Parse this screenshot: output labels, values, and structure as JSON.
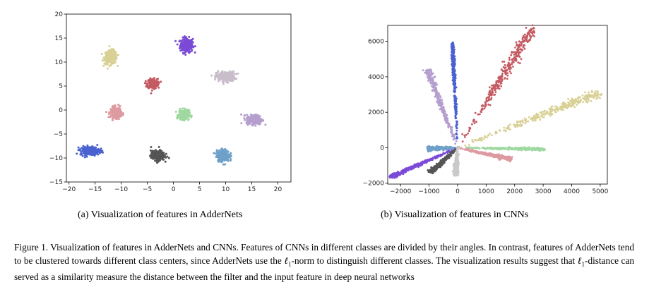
{
  "chart_data": [
    {
      "type": "scatter",
      "xlim": [
        -20.5,
        22.5
      ],
      "ylim": [
        -15,
        20
      ],
      "xticks": [
        -20,
        -15,
        -10,
        -5,
        0,
        5,
        10,
        15,
        20
      ],
      "yticks": [
        -15,
        -10,
        -5,
        0,
        5,
        10,
        15,
        20
      ],
      "grid": false,
      "clusters": [
        {
          "center": [
            2.5,
            13.5
          ],
          "spread": [
            1.2,
            1.5
          ],
          "color": "#7b4bd6"
        },
        {
          "center": [
            -12.0,
            11.0
          ],
          "spread": [
            1.2,
            1.4
          ],
          "color": "#d8d094"
        },
        {
          "center": [
            -4.0,
            5.5
          ],
          "spread": [
            1.0,
            1.0
          ],
          "color": "#c45a62"
        },
        {
          "center": [
            10.0,
            7.0
          ],
          "spread": [
            1.8,
            1.0
          ],
          "color": "#c9bdcb"
        },
        {
          "center": [
            -11.0,
            -0.5
          ],
          "spread": [
            1.0,
            1.1
          ],
          "color": "#dd9aa0"
        },
        {
          "center": [
            2.0,
            -1.0
          ],
          "spread": [
            1.0,
            1.0
          ],
          "color": "#9fd8a0"
        },
        {
          "center": [
            15.5,
            -2.0
          ],
          "spread": [
            1.5,
            1.0
          ],
          "color": "#b59fce"
        },
        {
          "center": [
            -16.0,
            -8.5
          ],
          "spread": [
            1.8,
            0.9
          ],
          "color": "#4a62d0"
        },
        {
          "center": [
            -3.0,
            -9.5
          ],
          "spread": [
            1.3,
            1.0
          ],
          "color": "#555555"
        },
        {
          "center": [
            9.5,
            -9.5
          ],
          "spread": [
            1.2,
            1.2
          ],
          "color": "#6ea0c9"
        }
      ]
    },
    {
      "type": "scatter",
      "xlim": [
        -2450,
        5250
      ],
      "ylim": [
        -2050,
        6900
      ],
      "xticks": [
        -2000,
        -1000,
        0,
        1000,
        2000,
        3000,
        4000,
        5000
      ],
      "yticks": [
        -2000,
        0,
        2000,
        4000,
        6000
      ],
      "grid": false,
      "rays": [
        {
          "end": [
            2650,
            6750
          ],
          "width": 230,
          "color": "#c45a62"
        },
        {
          "end": [
            4950,
            3100
          ],
          "width": 230,
          "color": "#d8d094"
        },
        {
          "end": [
            -1050,
            4400
          ],
          "width": 120,
          "color": "#b59fce"
        },
        {
          "end": [
            -180,
            5850
          ],
          "width": 60,
          "color": "#4a62d0"
        },
        {
          "end": [
            3050,
            -80
          ],
          "width": 80,
          "color": "#9fd8a0"
        },
        {
          "end": [
            1900,
            -650
          ],
          "width": 110,
          "color": "#dd9aa0"
        },
        {
          "end": [
            -1050,
            -50
          ],
          "width": 120,
          "color": "#6ea0c9"
        },
        {
          "end": [
            -2350,
            -1650
          ],
          "width": 110,
          "color": "#7b4bd6"
        },
        {
          "end": [
            -950,
            -1400
          ],
          "width": 110,
          "color": "#555555"
        },
        {
          "end": [
            -80,
            -1550
          ],
          "width": 90,
          "color": "#c9c9c9"
        }
      ]
    }
  ],
  "captions": {
    "a": "(a) Visualization of features in AdderNets",
    "b": "(b) Visualization of features in CNNs"
  },
  "figure_caption": {
    "part1": "Figure 1. Visualization of features in AdderNets and CNNs. Features of CNNs in different classes are divided by their angles. In contrast, features of AdderNets tend to be clustered towards different class centers, since AdderNets use the ",
    "l1_symbol": "ℓ",
    "l1_sub": "1",
    "part2": "-norm to distinguish different classes. The visualization results suggest that ",
    "part3": "-distance can served as a similarity measure the distance between the filter and the input feature in deep neural networks"
  }
}
